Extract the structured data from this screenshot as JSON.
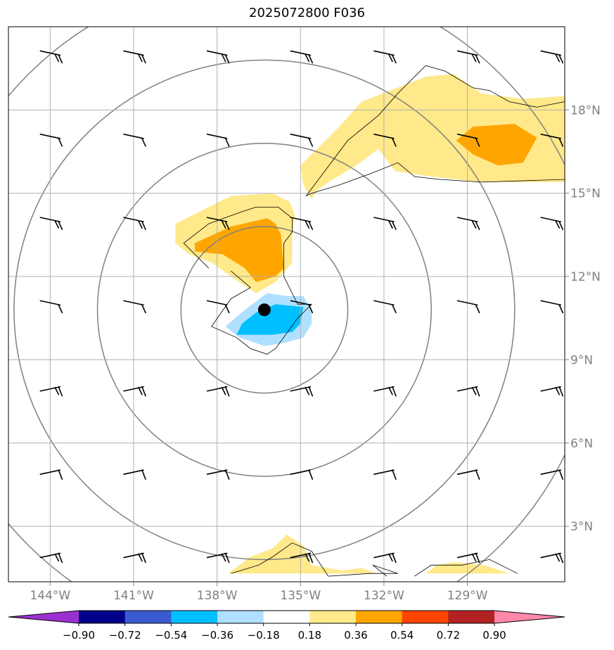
{
  "chart_data": {
    "type": "map",
    "title": "2025072800 F036",
    "lon_range": [
      -145.5,
      -125.5
    ],
    "lat_range": [
      1,
      21
    ],
    "lon_ticks": [
      {
        "value": -144,
        "label": "144°W"
      },
      {
        "value": -141,
        "label": "141°W"
      },
      {
        "value": -138,
        "label": "138°W"
      },
      {
        "value": -135,
        "label": "135°W"
      },
      {
        "value": -132,
        "label": "132°W"
      },
      {
        "value": -129,
        "label": "129°W"
      }
    ],
    "lat_ticks": [
      {
        "value": 3,
        "label": "3°N"
      },
      {
        "value": 6,
        "label": "6°N"
      },
      {
        "value": 9,
        "label": "9°N"
      },
      {
        "value": 12,
        "label": "12°N"
      },
      {
        "value": 15,
        "label": "15°N"
      },
      {
        "value": 18,
        "label": "18°N"
      }
    ],
    "grid": true,
    "center_marker": {
      "lon": -136.3,
      "lat": 10.8
    },
    "range_rings_deg": [
      3,
      6,
      9,
      12
    ],
    "colorbar": {
      "position": "bottom",
      "levels": [
        -0.9,
        -0.72,
        -0.54,
        -0.36,
        -0.18,
        0.18,
        0.36,
        0.54,
        0.72,
        0.9
      ],
      "tick_labels": [
        "−0.90",
        "−0.72",
        "−0.54",
        "−0.36",
        "−0.18",
        "0.18",
        "0.36",
        "0.54",
        "0.72",
        "0.90"
      ],
      "colors": [
        "#9b30d0",
        "#00008b",
        "#3a5bd0",
        "#00bfff",
        "#b0e0ff",
        "#ffffff",
        "#ffe98a",
        "#ffa500",
        "#ff4500",
        "#b22222",
        "#ff88aa"
      ]
    },
    "shaded_regions": [
      {
        "level": 0.18,
        "color": "#ffe98a",
        "points": [
          [
            -132.8,
            18.3
          ],
          [
            -130.5,
            19.2
          ],
          [
            -129.5,
            19.3
          ],
          [
            -128.5,
            18.6
          ],
          [
            -127,
            18.4
          ],
          [
            -125.5,
            18.5
          ],
          [
            -125.5,
            15.4
          ],
          [
            -128.5,
            15.4
          ],
          [
            -130.3,
            15.6
          ],
          [
            -131.6,
            15.8
          ],
          [
            -132.2,
            16.6
          ],
          [
            -133,
            16
          ],
          [
            -134,
            15.4
          ],
          [
            -134.4,
            15.1
          ],
          [
            -134.6,
            14.8
          ],
          [
            -134.9,
            15.3
          ],
          [
            -135,
            16
          ],
          [
            -133.6,
            17.4
          ]
        ]
      },
      {
        "level": 0.36,
        "color": "#ffa500",
        "points": [
          [
            -128.8,
            17.4
          ],
          [
            -127.3,
            17.5
          ],
          [
            -126.5,
            17
          ],
          [
            -127,
            16.1
          ],
          [
            -127.9,
            16
          ],
          [
            -128.8,
            16.4
          ],
          [
            -129.4,
            16.9
          ]
        ]
      },
      {
        "level": 0.18,
        "color": "#ffe98a",
        "points": [
          [
            -139.5,
            13.9
          ],
          [
            -138.3,
            14.5
          ],
          [
            -137.5,
            14.9
          ],
          [
            -136,
            15
          ],
          [
            -135.4,
            14.7
          ],
          [
            -135.2,
            14.2
          ],
          [
            -135.3,
            13.5
          ],
          [
            -135.3,
            12.5
          ],
          [
            -135.9,
            11.8
          ],
          [
            -136.6,
            11.4
          ],
          [
            -137.2,
            11.8
          ],
          [
            -138.2,
            12.5
          ],
          [
            -139,
            12.8
          ],
          [
            -139.5,
            13.2
          ]
        ]
      },
      {
        "level": 0.36,
        "color": "#ffa500",
        "points": [
          [
            -138.8,
            13.2
          ],
          [
            -137.5,
            13.8
          ],
          [
            -136.2,
            14.1
          ],
          [
            -135.9,
            13.9
          ],
          [
            -135.7,
            13.5
          ],
          [
            -135.6,
            12.3
          ],
          [
            -135.9,
            12
          ],
          [
            -136.6,
            11.8
          ],
          [
            -137,
            12.3
          ],
          [
            -137.8,
            12.8
          ],
          [
            -138.8,
            12.9
          ]
        ]
      },
      {
        "level": -0.18,
        "color": "#b0e0ff",
        "points": [
          [
            -135.5,
            11.3
          ],
          [
            -134.9,
            11.3
          ],
          [
            -134.6,
            10.8
          ],
          [
            -134.6,
            10.3
          ],
          [
            -134.9,
            9.8
          ],
          [
            -135.6,
            9.6
          ],
          [
            -136.3,
            9.5
          ],
          [
            -137.2,
            9.8
          ],
          [
            -137.7,
            10.2
          ],
          [
            -137,
            10.8
          ],
          [
            -136.2,
            11.4
          ]
        ]
      },
      {
        "level": -0.36,
        "color": "#00bfff",
        "points": [
          [
            -134.9,
            10.9
          ],
          [
            -135,
            10.3
          ],
          [
            -135.3,
            10
          ],
          [
            -136,
            9.9
          ],
          [
            -137.3,
            9.9
          ],
          [
            -137.1,
            10.3
          ],
          [
            -136.6,
            10.7
          ],
          [
            -135.9,
            11
          ]
        ]
      },
      {
        "level": 0.18,
        "color": "#ffe98a",
        "points": [
          [
            -137.6,
            1.3
          ],
          [
            -136.8,
            1.9
          ],
          [
            -136,
            2.2
          ],
          [
            -135.5,
            2.7
          ],
          [
            -134.9,
            2.3
          ],
          [
            -134.6,
            1.6
          ],
          [
            -133.5,
            1.4
          ],
          [
            -132.8,
            1.5
          ],
          [
            -132.3,
            1.3
          ]
        ]
      },
      {
        "level": 0.18,
        "color": "#ffe98a",
        "points": [
          [
            -130.5,
            1.3
          ],
          [
            -130.1,
            1.6
          ],
          [
            -129.5,
            1.7
          ],
          [
            -128.4,
            1.6
          ],
          [
            -127.5,
            1.3
          ]
        ]
      }
    ],
    "contour_lines": [
      {
        "points": [
          [
            -134.8,
            14.9
          ],
          [
            -133.3,
            16.9
          ],
          [
            -132.2,
            17.8
          ],
          [
            -131.5,
            18.6
          ],
          [
            -130.5,
            19.6
          ],
          [
            -129.8,
            19.4
          ],
          [
            -128.8,
            18.8
          ],
          [
            -128.2,
            18.7
          ],
          [
            -127.5,
            18.3
          ],
          [
            -126.5,
            18.1
          ],
          [
            -125.5,
            18.3
          ]
        ]
      },
      {
        "points": [
          [
            -134.8,
            14.9
          ],
          [
            -134.6,
            15
          ],
          [
            -133.6,
            15.3
          ],
          [
            -132.5,
            15.7
          ],
          [
            -131.5,
            16.1
          ],
          [
            -130.9,
            15.6
          ],
          [
            -130,
            15.5
          ],
          [
            -128.5,
            15.4
          ],
          [
            -125.5,
            15.5
          ]
        ]
      },
      {
        "points": [
          [
            -138.3,
            12.3
          ],
          [
            -139.2,
            13.2
          ],
          [
            -138.3,
            13.9
          ],
          [
            -137.2,
            14.3
          ],
          [
            -136.6,
            14.5
          ],
          [
            -135.8,
            14.5
          ],
          [
            -135.3,
            14.1
          ],
          [
            -135.3,
            13.6
          ],
          [
            -135.6,
            13.2
          ],
          [
            -135.6,
            12.0
          ],
          [
            -135.1,
            11.0
          ],
          [
            -134.6,
            11.0
          ],
          [
            -135.1,
            10.5
          ],
          [
            -135.9,
            9.4
          ],
          [
            -136.2,
            9.2
          ],
          [
            -136.8,
            9.4
          ],
          [
            -137.3,
            9.8
          ],
          [
            -138.2,
            10.2
          ],
          [
            -137.5,
            11.2
          ],
          [
            -136.8,
            11.6
          ],
          [
            -137.5,
            12.2
          ]
        ]
      },
      {
        "points": [
          [
            -137.5,
            1.3
          ],
          [
            -136.5,
            1.6
          ],
          [
            -136,
            1.9
          ],
          [
            -135.3,
            2.4
          ],
          [
            -134.6,
            2.1
          ],
          [
            -134,
            1.2
          ],
          [
            -132.5,
            1.3
          ],
          [
            -131.5,
            1.3
          ],
          [
            -132.4,
            1.6
          ],
          [
            -131.9,
            1.2
          ]
        ]
      },
      {
        "points": [
          [
            -130.9,
            1.2
          ],
          [
            -130.3,
            1.6
          ],
          [
            -129.2,
            1.6
          ],
          [
            -128.2,
            1.8
          ],
          [
            -127.2,
            1.3
          ]
        ]
      }
    ]
  }
}
